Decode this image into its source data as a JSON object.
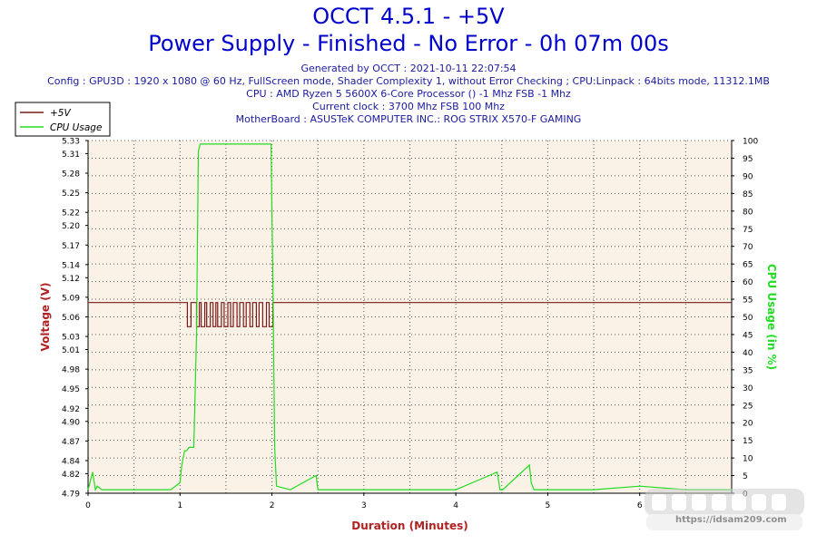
{
  "header": {
    "title": "OCCT 4.5.1 - +5V",
    "subtitle": "Power Supply - Finished - No Error - 0h 07m 00s",
    "info_lines": [
      "Generated by OCCT : 2021-10-11 22:07:54",
      "Config : GPU3D : 1920 x 1080 @ 60 Hz, FullScreen mode, Shader Complexity 1, without Error Checking ; CPU:Linpack : 64bits mode, 11312.1MB",
      "CPU : AMD Ryzen 5 5600X 6-Core Processor () -1 Mhz FSB -1 Mhz",
      "Current clock : 3700 Mhz FSB 100 Mhz",
      "MotherBoard : ASUSTeK COMPUTER INC.: ROG STRIX X570-F GAMING"
    ]
  },
  "watermark": {
    "url": "https://idsam209.com"
  },
  "colors": {
    "voltage": "#7a1a1a",
    "cpu": "#22dd22",
    "plot_bg": "#faf2e6",
    "title": "#0000cc",
    "axis_label": "#b22222"
  },
  "chart_data": {
    "type": "line",
    "xlabel": "Duration (Minutes)",
    "ylabel_left": "Voltage (V)",
    "ylabel_right": "CPU Usage (in %)",
    "xlim": [
      0,
      7
    ],
    "x_ticks": [
      0,
      1,
      2,
      3,
      4,
      5,
      6
    ],
    "ylim_left": [
      4.79,
      5.33
    ],
    "y_ticks_left": [
      "4.79",
      "4.82",
      "4.84",
      "4.87",
      "4.90",
      "4.92",
      "4.95",
      "4.98",
      "5.01",
      "5.03",
      "5.06",
      "5.09",
      "5.12",
      "5.14",
      "5.17",
      "5.20",
      "5.22",
      "5.25",
      "5.28",
      "5.31",
      "5.33"
    ],
    "ylim_right": [
      0,
      100
    ],
    "y_ticks_right": [
      0,
      5,
      10,
      15,
      20,
      25,
      30,
      35,
      40,
      45,
      50,
      55,
      60,
      65,
      70,
      75,
      80,
      85,
      90,
      95,
      100
    ],
    "legend_position": "top-left",
    "series": [
      {
        "name": "+5V",
        "axis": "left",
        "x": [
          0,
          1.08,
          1.08,
          1.12,
          1.12,
          1.18,
          1.18,
          1.21,
          1.21,
          1.23,
          1.23,
          1.27,
          1.27,
          1.29,
          1.29,
          1.33,
          1.33,
          1.36,
          1.36,
          1.39,
          1.39,
          1.41,
          1.41,
          1.45,
          1.45,
          1.48,
          1.48,
          1.52,
          1.52,
          1.55,
          1.55,
          1.58,
          1.58,
          1.62,
          1.62,
          1.65,
          1.65,
          1.69,
          1.69,
          1.72,
          1.72,
          1.76,
          1.76,
          1.79,
          1.79,
          1.83,
          1.83,
          1.86,
          1.86,
          1.9,
          1.9,
          1.94,
          1.94,
          1.97,
          1.97,
          2.01,
          2.01,
          2.05,
          2.05,
          7
        ],
        "y": [
          5.082,
          5.082,
          5.045,
          5.045,
          5.082,
          5.082,
          5.045,
          5.045,
          5.082,
          5.082,
          5.045,
          5.045,
          5.082,
          5.082,
          5.045,
          5.045,
          5.082,
          5.082,
          5.045,
          5.045,
          5.082,
          5.082,
          5.045,
          5.045,
          5.082,
          5.082,
          5.045,
          5.045,
          5.082,
          5.082,
          5.045,
          5.045,
          5.082,
          5.082,
          5.045,
          5.045,
          5.082,
          5.082,
          5.045,
          5.045,
          5.082,
          5.082,
          5.045,
          5.045,
          5.082,
          5.082,
          5.045,
          5.045,
          5.082,
          5.082,
          5.045,
          5.045,
          5.082,
          5.082,
          5.045,
          5.045,
          5.082,
          5.082,
          5.082,
          5.082
        ]
      },
      {
        "name": "CPU Usage",
        "axis": "right",
        "x": [
          0,
          0.05,
          0.08,
          0.1,
          0.15,
          0.3,
          0.5,
          0.7,
          0.9,
          1.0,
          1.02,
          1.05,
          1.07,
          1.1,
          1.15,
          1.18,
          1.2,
          1.22,
          1.25,
          1.3,
          1.5,
          1.7,
          1.9,
          1.99,
          2.01,
          2.03,
          2.05,
          2.2,
          2.48,
          2.5,
          2.53,
          3.0,
          3.5,
          4.0,
          4.45,
          4.48,
          4.51,
          4.8,
          4.82,
          4.85,
          5.0,
          5.5,
          6.0,
          6.5,
          7.0
        ],
        "y": [
          1,
          6,
          1,
          2,
          1,
          1,
          1,
          1,
          1,
          3,
          8,
          12,
          12,
          13,
          13,
          45,
          97,
          99,
          99,
          99,
          99,
          99,
          99,
          99,
          60,
          13,
          2,
          1,
          5,
          1,
          1,
          1,
          1,
          1,
          6,
          1,
          1,
          8,
          3,
          1,
          1,
          1,
          2,
          1,
          1
        ]
      }
    ]
  }
}
